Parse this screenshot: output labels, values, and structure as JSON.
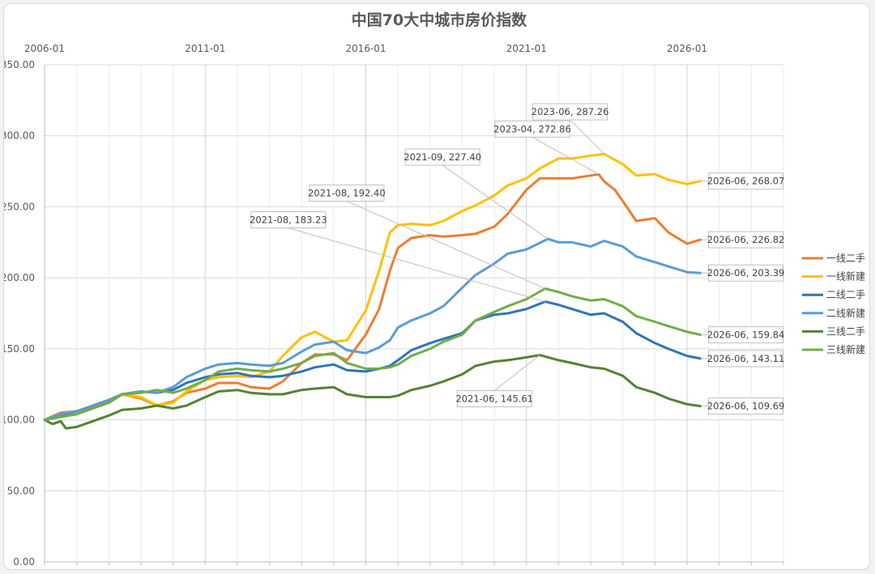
{
  "chart_data": {
    "type": "line",
    "title": "中国70大中城市房价指数",
    "x_tick_labels": [
      "2006-01",
      "2011-01",
      "2016-01",
      "2021-01",
      "2026-01"
    ],
    "y_tick_labels": [
      "0.00",
      "50.00",
      "100.00",
      "150.00",
      "200.00",
      "250.00",
      "300.00",
      "350.00"
    ],
    "ylim": [
      0,
      350
    ],
    "xlim": [
      "2006-01",
      "2029-01"
    ],
    "grid": true,
    "legend_position": "right",
    "series": [
      {
        "name": "一线二手",
        "color": "#ED7D31",
        "points": [
          [
            "2006-01",
            100
          ],
          [
            "2006-07",
            105
          ],
          [
            "2007-01",
            106
          ],
          [
            "2007-07",
            109
          ],
          [
            "2008-01",
            112
          ],
          [
            "2008-06",
            118
          ],
          [
            "2009-01",
            115
          ],
          [
            "2009-07",
            110
          ],
          [
            "2010-01",
            113
          ],
          [
            "2010-06",
            119
          ],
          [
            "2011-01",
            122
          ],
          [
            "2011-06",
            126
          ],
          [
            "2012-01",
            126
          ],
          [
            "2012-06",
            123
          ],
          [
            "2013-01",
            122
          ],
          [
            "2013-06",
            127
          ],
          [
            "2014-01",
            140
          ],
          [
            "2014-06",
            146
          ],
          [
            "2015-01",
            146
          ],
          [
            "2015-06",
            142
          ],
          [
            "2016-01",
            160
          ],
          [
            "2016-06",
            178
          ],
          [
            "2016-10",
            205
          ],
          [
            "2017-01",
            221
          ],
          [
            "2017-06",
            228
          ],
          [
            "2018-01",
            230
          ],
          [
            "2018-06",
            229
          ],
          [
            "2019-01",
            230
          ],
          [
            "2019-06",
            231
          ],
          [
            "2020-01",
            236
          ],
          [
            "2020-06",
            245
          ],
          [
            "2021-01",
            262
          ],
          [
            "2021-06",
            270
          ],
          [
            "2022-01",
            270
          ],
          [
            "2022-06",
            270
          ],
          [
            "2023-04",
            272.86
          ],
          [
            "2023-06",
            268
          ],
          [
            "2023-10",
            262
          ],
          [
            "2024-01",
            254
          ],
          [
            "2024-06",
            240
          ],
          [
            "2025-01",
            242
          ],
          [
            "2025-06",
            232
          ],
          [
            "2026-01",
            224
          ],
          [
            "2026-06",
            226.82
          ]
        ]
      },
      {
        "name": "一线新建",
        "color": "#FFC000",
        "points": [
          [
            "2006-01",
            100
          ],
          [
            "2006-07",
            104
          ],
          [
            "2007-01",
            106
          ],
          [
            "2007-07",
            110
          ],
          [
            "2008-01",
            114
          ],
          [
            "2008-06",
            118
          ],
          [
            "2009-01",
            116
          ],
          [
            "2009-07",
            110
          ],
          [
            "2010-01",
            112
          ],
          [
            "2010-06",
            120
          ],
          [
            "2011-01",
            128
          ],
          [
            "2011-06",
            130
          ],
          [
            "2012-01",
            131
          ],
          [
            "2012-06",
            130
          ],
          [
            "2013-01",
            134
          ],
          [
            "2013-06",
            145
          ],
          [
            "2014-01",
            158
          ],
          [
            "2014-06",
            162
          ],
          [
            "2015-01",
            155
          ],
          [
            "2015-06",
            156
          ],
          [
            "2016-01",
            177
          ],
          [
            "2016-06",
            205
          ],
          [
            "2016-10",
            232
          ],
          [
            "2017-01",
            237
          ],
          [
            "2017-06",
            238
          ],
          [
            "2018-01",
            237
          ],
          [
            "2018-06",
            240
          ],
          [
            "2019-01",
            247
          ],
          [
            "2019-06",
            251
          ],
          [
            "2020-01",
            258
          ],
          [
            "2020-06",
            265
          ],
          [
            "2021-01",
            270
          ],
          [
            "2021-06",
            277
          ],
          [
            "2022-01",
            284
          ],
          [
            "2022-06",
            284
          ],
          [
            "2023-01",
            286
          ],
          [
            "2023-06",
            287.26
          ],
          [
            "2023-10",
            283
          ],
          [
            "2024-01",
            280
          ],
          [
            "2024-06",
            272
          ],
          [
            "2025-01",
            273
          ],
          [
            "2025-06",
            269
          ],
          [
            "2026-01",
            266
          ],
          [
            "2026-06",
            268.07
          ]
        ]
      },
      {
        "name": "二线二手",
        "color": "#2E75B6",
        "points": [
          [
            "2006-01",
            100
          ],
          [
            "2006-07",
            103
          ],
          [
            "2007-01",
            106
          ],
          [
            "2007-07",
            110
          ],
          [
            "2008-01",
            114
          ],
          [
            "2008-06",
            118
          ],
          [
            "2009-01",
            120
          ],
          [
            "2009-07",
            119
          ],
          [
            "2010-01",
            121
          ],
          [
            "2010-06",
            126
          ],
          [
            "2011-01",
            130
          ],
          [
            "2011-06",
            132
          ],
          [
            "2012-01",
            133
          ],
          [
            "2012-06",
            131
          ],
          [
            "2013-01",
            130
          ],
          [
            "2013-06",
            131
          ],
          [
            "2014-01",
            134
          ],
          [
            "2014-06",
            137
          ],
          [
            "2015-01",
            139
          ],
          [
            "2015-06",
            135
          ],
          [
            "2016-01",
            134
          ],
          [
            "2016-06",
            136
          ],
          [
            "2016-10",
            138
          ],
          [
            "2017-01",
            142
          ],
          [
            "2017-06",
            149
          ],
          [
            "2018-01",
            154
          ],
          [
            "2018-06",
            157
          ],
          [
            "2019-01",
            161
          ],
          [
            "2019-06",
            170
          ],
          [
            "2020-01",
            174
          ],
          [
            "2020-06",
            175
          ],
          [
            "2021-01",
            178
          ],
          [
            "2021-08",
            183.23
          ],
          [
            "2022-01",
            181
          ],
          [
            "2022-06",
            178
          ],
          [
            "2023-01",
            174
          ],
          [
            "2023-06",
            175
          ],
          [
            "2024-01",
            169
          ],
          [
            "2024-06",
            161
          ],
          [
            "2025-01",
            154
          ],
          [
            "2025-06",
            150
          ],
          [
            "2026-01",
            145
          ],
          [
            "2026-06",
            143.11
          ]
        ]
      },
      {
        "name": "二线新建",
        "color": "#5B9BD5",
        "points": [
          [
            "2006-01",
            100
          ],
          [
            "2006-07",
            104
          ],
          [
            "2007-01",
            106
          ],
          [
            "2007-07",
            110
          ],
          [
            "2008-01",
            114
          ],
          [
            "2008-06",
            118
          ],
          [
            "2009-01",
            120
          ],
          [
            "2009-07",
            119
          ],
          [
            "2010-01",
            123
          ],
          [
            "2010-06",
            130
          ],
          [
            "2011-01",
            136
          ],
          [
            "2011-06",
            139
          ],
          [
            "2012-01",
            140
          ],
          [
            "2012-06",
            139
          ],
          [
            "2013-01",
            138
          ],
          [
            "2013-06",
            140
          ],
          [
            "2014-01",
            148
          ],
          [
            "2014-06",
            153
          ],
          [
            "2015-01",
            155
          ],
          [
            "2015-06",
            149
          ],
          [
            "2016-01",
            147
          ],
          [
            "2016-06",
            151
          ],
          [
            "2016-10",
            156
          ],
          [
            "2017-01",
            165
          ],
          [
            "2017-06",
            170
          ],
          [
            "2018-01",
            175
          ],
          [
            "2018-06",
            180
          ],
          [
            "2019-01",
            193
          ],
          [
            "2019-06",
            202
          ],
          [
            "2020-01",
            210
          ],
          [
            "2020-06",
            217
          ],
          [
            "2021-01",
            220
          ],
          [
            "2021-09",
            227.4
          ],
          [
            "2022-01",
            225
          ],
          [
            "2022-06",
            225
          ],
          [
            "2023-01",
            222
          ],
          [
            "2023-06",
            226
          ],
          [
            "2024-01",
            222
          ],
          [
            "2024-06",
            215
          ],
          [
            "2025-01",
            211
          ],
          [
            "2025-06",
            208
          ],
          [
            "2026-01",
            204
          ],
          [
            "2026-06",
            203.39
          ]
        ]
      },
      {
        "name": "三线二手",
        "color": "#548235",
        "points": [
          [
            "2006-01",
            100
          ],
          [
            "2006-04",
            97
          ],
          [
            "2006-07",
            99
          ],
          [
            "2006-09",
            94
          ],
          [
            "2007-01",
            95
          ],
          [
            "2007-07",
            99
          ],
          [
            "2008-01",
            103
          ],
          [
            "2008-06",
            107
          ],
          [
            "2009-01",
            108
          ],
          [
            "2009-07",
            110
          ],
          [
            "2010-01",
            108
          ],
          [
            "2010-06",
            110
          ],
          [
            "2011-01",
            116
          ],
          [
            "2011-06",
            120
          ],
          [
            "2012-01",
            121
          ],
          [
            "2012-06",
            119
          ],
          [
            "2013-01",
            118
          ],
          [
            "2013-06",
            118
          ],
          [
            "2014-01",
            121
          ],
          [
            "2014-06",
            122
          ],
          [
            "2015-01",
            123
          ],
          [
            "2015-06",
            118
          ],
          [
            "2016-01",
            116
          ],
          [
            "2016-06",
            116
          ],
          [
            "2016-10",
            116
          ],
          [
            "2017-01",
            117
          ],
          [
            "2017-06",
            121
          ],
          [
            "2018-01",
            124
          ],
          [
            "2018-06",
            127
          ],
          [
            "2019-01",
            132
          ],
          [
            "2019-06",
            138
          ],
          [
            "2020-01",
            141
          ],
          [
            "2020-06",
            142
          ],
          [
            "2021-01",
            144
          ],
          [
            "2021-06",
            145.61
          ],
          [
            "2022-01",
            142
          ],
          [
            "2022-06",
            140
          ],
          [
            "2023-01",
            137
          ],
          [
            "2023-06",
            136
          ],
          [
            "2024-01",
            131
          ],
          [
            "2024-06",
            123
          ],
          [
            "2025-01",
            119
          ],
          [
            "2025-06",
            115
          ],
          [
            "2026-01",
            111
          ],
          [
            "2026-06",
            109.69
          ]
        ]
      },
      {
        "name": "三线新建",
        "color": "#70AD47",
        "points": [
          [
            "2006-01",
            100
          ],
          [
            "2006-07",
            102
          ],
          [
            "2007-01",
            104
          ],
          [
            "2007-07",
            108
          ],
          [
            "2008-01",
            112
          ],
          [
            "2008-06",
            118
          ],
          [
            "2009-01",
            119
          ],
          [
            "2009-07",
            121
          ],
          [
            "2010-01",
            119
          ],
          [
            "2010-06",
            122
          ],
          [
            "2011-01",
            128
          ],
          [
            "2011-06",
            134
          ],
          [
            "2012-01",
            136
          ],
          [
            "2012-06",
            135
          ],
          [
            "2013-01",
            134
          ],
          [
            "2013-06",
            136
          ],
          [
            "2014-01",
            140
          ],
          [
            "2014-06",
            145
          ],
          [
            "2015-01",
            147
          ],
          [
            "2015-06",
            140
          ],
          [
            "2016-01",
            136
          ],
          [
            "2016-06",
            136
          ],
          [
            "2016-10",
            137
          ],
          [
            "2017-01",
            139
          ],
          [
            "2017-06",
            145
          ],
          [
            "2018-01",
            150
          ],
          [
            "2018-06",
            155
          ],
          [
            "2019-01",
            160
          ],
          [
            "2019-06",
            170
          ],
          [
            "2020-01",
            176
          ],
          [
            "2020-06",
            180
          ],
          [
            "2021-01",
            185
          ],
          [
            "2021-08",
            192.4
          ],
          [
            "2022-01",
            190
          ],
          [
            "2022-06",
            187
          ],
          [
            "2023-01",
            184
          ],
          [
            "2023-06",
            185
          ],
          [
            "2024-01",
            180
          ],
          [
            "2024-06",
            173
          ],
          [
            "2025-01",
            169
          ],
          [
            "2025-06",
            166
          ],
          [
            "2026-01",
            162
          ],
          [
            "2026-06",
            159.84
          ]
        ]
      }
    ],
    "annotations": [
      {
        "text": "2023-06, 287.26",
        "x": "2023-06",
        "y": 287.26,
        "placement": "top"
      },
      {
        "text": "2023-04, 272.86",
        "x": "2023-04",
        "y": 272.86,
        "placement": "top-left"
      },
      {
        "text": "2021-09, 227.40",
        "x": "2021-09",
        "y": 227.4,
        "placement": "upper-left"
      },
      {
        "text": "2021-08, 192.40",
        "x": "2021-08",
        "y": 192.4,
        "placement": "upper-left"
      },
      {
        "text": "2021-08, 183.23",
        "x": "2021-08",
        "y": 183.23,
        "placement": "upper-left"
      },
      {
        "text": "2021-06, 145.61",
        "x": "2021-06",
        "y": 145.61,
        "placement": "below-left"
      },
      {
        "text": "2026-06, 268.07",
        "x": "2026-06",
        "y": 268.07,
        "placement": "right"
      },
      {
        "text": "2026-06, 226.82",
        "x": "2026-06",
        "y": 226.82,
        "placement": "right"
      },
      {
        "text": "2026-06, 203.39",
        "x": "2026-06",
        "y": 203.39,
        "placement": "right"
      },
      {
        "text": "2026-06, 159.84",
        "x": "2026-06",
        "y": 159.84,
        "placement": "right"
      },
      {
        "text": "2026-06, 143.11",
        "x": "2026-06",
        "y": 143.11,
        "placement": "right"
      },
      {
        "text": "2026-06, 109.69",
        "x": "2026-06",
        "y": 109.69,
        "placement": "right"
      }
    ]
  }
}
